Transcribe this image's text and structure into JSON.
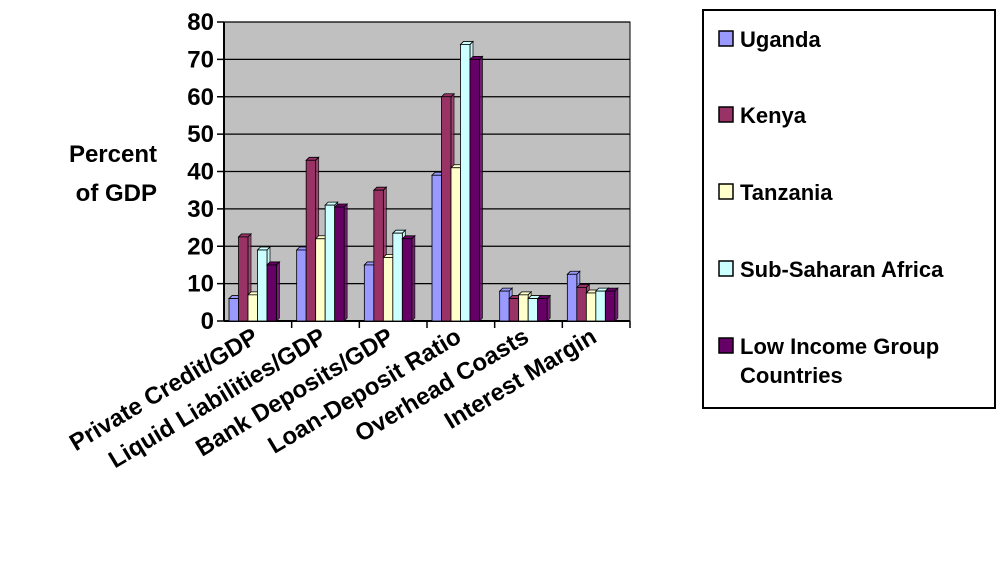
{
  "chart_data": {
    "type": "bar",
    "categories": [
      "Private Credit/GDP",
      "Liquid Liabilities/GDP",
      "Bank Deposits/GDP",
      "Loan-Deposit Ratio",
      "Overhead Coasts",
      "Interest Margin"
    ],
    "series": [
      {
        "name": "Uganda",
        "values": [
          6,
          19,
          15,
          39,
          8,
          12.5
        ],
        "color": "#9999ff"
      },
      {
        "name": "Kenya",
        "values": [
          22.5,
          43,
          35,
          60,
          6,
          9
        ],
        "color": "#993366"
      },
      {
        "name": "Tanzania",
        "values": [
          7,
          22,
          17,
          41,
          7,
          7.5
        ],
        "color": "#ffffcc"
      },
      {
        "name": "Sub-Saharan Africa",
        "values": [
          19,
          31,
          23.5,
          74,
          6,
          8
        ],
        "color": "#ccffff"
      },
      {
        "name": "Low Income Group Countries",
        "values": [
          15,
          30.5,
          22,
          70,
          6,
          8
        ],
        "color": "#660066"
      }
    ],
    "title": "",
    "xlabel": "",
    "ylabel": "Percent of GDP",
    "ylabel_lines": [
      "Percent",
      "of GDP"
    ],
    "ylim": [
      0,
      80
    ],
    "yticks": [
      "0",
      "10",
      "20",
      "30",
      "40",
      "50",
      "60",
      "70",
      "80"
    ],
    "grid": true,
    "plot_background": "#c0c0c0",
    "legend_position": "right",
    "legend_lines": [
      [
        "Uganda"
      ],
      [
        "Kenya"
      ],
      [
        "Tanzania"
      ],
      [
        "Sub-Saharan Africa"
      ],
      [
        "Low Income Group",
        "Countries"
      ]
    ]
  }
}
